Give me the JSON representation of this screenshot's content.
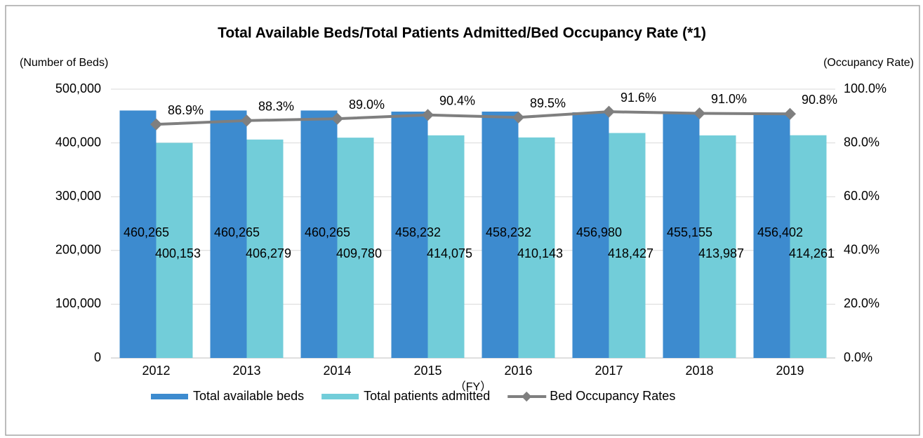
{
  "chart_data": {
    "type": "bar",
    "title": "Total Available Beds/Total Patients Admitted/Bed Occupancy Rate (*1)",
    "y_label": "(Number of Beds)",
    "y2_label": "(Occupancy Rate)",
    "x_label": "（FY）",
    "categories": [
      "2012",
      "2013",
      "2014",
      "2015",
      "2016",
      "2017",
      "2018",
      "2019"
    ],
    "series": [
      {
        "name": "Total available beds",
        "type": "bar",
        "color": "#3d8bcf",
        "values": [
          460265,
          460265,
          460265,
          458232,
          458232,
          456980,
          455155,
          456402
        ],
        "value_labels": [
          "460,265",
          "460,265",
          "460,265",
          "458,232",
          "458,232",
          "456,980",
          "455,155",
          "456,402"
        ]
      },
      {
        "name": "Total patients admitted",
        "type": "bar",
        "color": "#72cdd9",
        "values": [
          400153,
          406279,
          409780,
          414075,
          410143,
          418427,
          413987,
          414261
        ],
        "value_labels": [
          "400,153",
          "406,279",
          "409,780",
          "414,075",
          "410,143",
          "418,427",
          "413,987",
          "414,261"
        ]
      },
      {
        "name": "Bed Occupancy Rates",
        "type": "line",
        "axis": "y2",
        "color": "#7f7f7f",
        "values": [
          86.9,
          88.3,
          89.0,
          90.4,
          89.5,
          91.6,
          91.0,
          90.8
        ],
        "value_labels": [
          "86.9%",
          "88.3%",
          "89.0%",
          "90.4%",
          "89.5%",
          "91.6%",
          "91.0%",
          "90.8%"
        ]
      }
    ],
    "ylim": [
      0,
      500000
    ],
    "yticks": [
      0,
      {
        "value": 100000,
        "label": "100,000"
      },
      {
        "value": 200000,
        "label": "200,000"
      },
      {
        "value": 300000,
        "label": "300,000"
      },
      {
        "value": 400000,
        "label": "400,000"
      },
      {
        "value": 500000,
        "label": "500,000"
      }
    ],
    "y2lim": [
      0,
      100
    ],
    "y2ticks": [
      {
        "value": 0,
        "label": "0.0%"
      },
      {
        "value": 20,
        "label": "20.0%"
      },
      {
        "value": 40,
        "label": "40.0%"
      },
      {
        "value": 60,
        "label": "60.0%"
      },
      {
        "value": 80,
        "label": "80.0%"
      },
      {
        "value": 100,
        "label": "100.0%"
      }
    ],
    "grid": true,
    "legend": "bottom"
  }
}
